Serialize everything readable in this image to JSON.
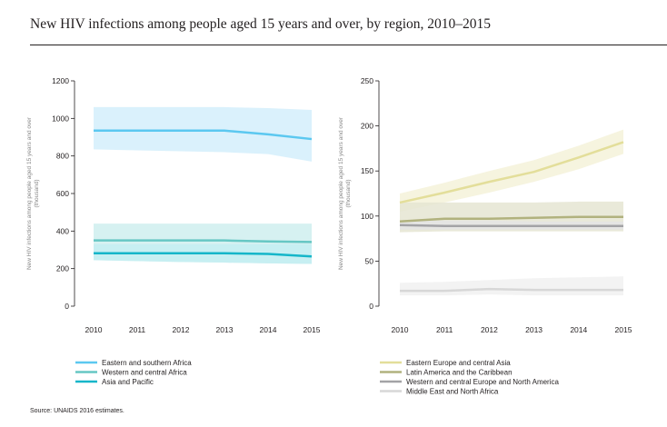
{
  "title": "New HIV infections among people aged 15 years and over, by region, 2010–2015",
  "source": "Source: UNAIDS 2016 estimates.",
  "chart_data": [
    {
      "type": "line",
      "ylabel": "New HIV infections among people aged 15 years and over (thousand)",
      "ylim": [
        0,
        1200
      ],
      "yticks": [
        0,
        200,
        400,
        600,
        800,
        1000,
        1200
      ],
      "x": [
        2010,
        2011,
        2012,
        2013,
        2014,
        2015
      ],
      "grid": false,
      "legend_position": "bottom",
      "series": [
        {
          "name": "Eastern and southern Africa",
          "color": "#5bc8f0",
          "band_color": "#d4effb",
          "values": [
            935,
            935,
            935,
            935,
            915,
            890
          ],
          "lower": [
            835,
            830,
            825,
            820,
            810,
            770
          ],
          "upper": [
            1060,
            1060,
            1060,
            1060,
            1055,
            1045
          ]
        },
        {
          "name": "Western and central Africa",
          "color": "#66c7c4",
          "band_color": "#cfeeee",
          "values": [
            350,
            350,
            350,
            350,
            345,
            342
          ],
          "lower": [
            245,
            240,
            235,
            232,
            228,
            225
          ],
          "upper": [
            440,
            440,
            440,
            440,
            440,
            440
          ]
        },
        {
          "name": "Asia and Pacific",
          "color": "#15b6c9",
          "band_color": "#c4eef2",
          "values": [
            282,
            282,
            282,
            282,
            278,
            265
          ],
          "lower": [
            245,
            240,
            235,
            232,
            228,
            225
          ],
          "upper": [
            330,
            330,
            330,
            330,
            330,
            330
          ]
        }
      ]
    },
    {
      "type": "line",
      "ylabel": "New HIV infections among people aged 15 years and over (thousand)",
      "ylim": [
        0,
        250
      ],
      "yticks": [
        0,
        50,
        100,
        150,
        200,
        250
      ],
      "x": [
        2010,
        2011,
        2012,
        2013,
        2014,
        2015
      ],
      "grid": false,
      "legend_position": "bottom",
      "series": [
        {
          "name": "Eastern Europe and central Asia",
          "color": "#e3de9a",
          "band_color": "#f4f2d9",
          "values": [
            115,
            126,
            138,
            149,
            165,
            182
          ],
          "lower": [
            105,
            115,
            126,
            138,
            152,
            169
          ],
          "upper": [
            125,
            137,
            150,
            162,
            178,
            196
          ]
        },
        {
          "name": "Latin America and the Caribbean",
          "color": "#b1b27e",
          "band_color": "#e5e5d2",
          "values": [
            94,
            97,
            97,
            98,
            99,
            99
          ],
          "lower": [
            82,
            83,
            83,
            83,
            83,
            83
          ],
          "upper": [
            115,
            115,
            115,
            115,
            116,
            116
          ]
        },
        {
          "name": "Western and central Europe and North America",
          "color": "#a3a3a6",
          "band_color": "#e4e4e4",
          "values": [
            90,
            89,
            89,
            89,
            89,
            89
          ],
          "lower": [
            85,
            85,
            85,
            85,
            85,
            85
          ],
          "upper": [
            95,
            95,
            95,
            94,
            94,
            94
          ]
        },
        {
          "name": "Middle East and North Africa",
          "color": "#d7d7d7",
          "band_color": "#f1f1f1",
          "values": [
            17,
            17,
            19,
            18,
            18,
            18
          ],
          "lower": [
            12,
            12,
            13,
            12,
            12,
            12
          ],
          "upper": [
            26,
            27,
            29,
            31,
            32,
            33
          ]
        }
      ]
    }
  ]
}
